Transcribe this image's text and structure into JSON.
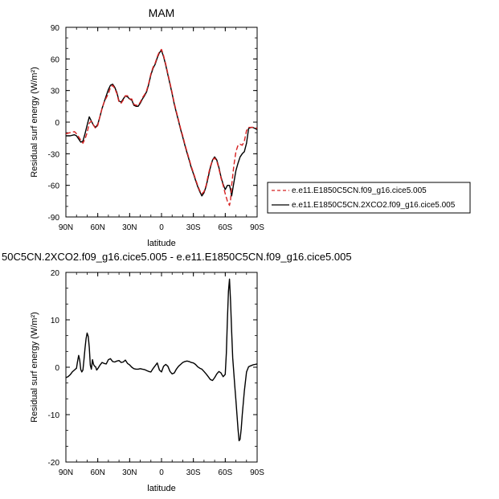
{
  "chart_data": [
    {
      "type": "line",
      "title": "MAM",
      "xlabel": "latitude",
      "ylabel": "Residual surf energy (W/m²)",
      "ylim": [
        -90,
        90
      ],
      "yticks": [
        "90",
        "60",
        "30",
        "0",
        "-30",
        "-60",
        "-90"
      ],
      "xlim": [
        90,
        -90
      ],
      "xticks": [
        "90N",
        "60N",
        "30N",
        "0",
        "30S",
        "60S",
        "90S"
      ],
      "grid": false,
      "legend_position": "outside-right",
      "legend": [
        "e.e11.E1850C5CN.f09_g16.cice5.005",
        "e.e11.E1850C5CN.2XCO2.f09_g16.cice5.005"
      ],
      "colors": {
        "red_dashed": "#d62020",
        "black_solid": "#000000"
      },
      "series": [
        {
          "name": "e.e11.E1850C5CN.f09_g16.cice5.005",
          "color": "#d62020",
          "dash": "dashed",
          "x": [
            90,
            86,
            82,
            80,
            78,
            76,
            74,
            72,
            70,
            68,
            66,
            64,
            62,
            60,
            58,
            56,
            54,
            52,
            50,
            48,
            46,
            44,
            42,
            40,
            38,
            36,
            34,
            32,
            30,
            28,
            26,
            24,
            22,
            20,
            18,
            16,
            14,
            12,
            10,
            8,
            6,
            4,
            2,
            0,
            -2,
            -4,
            -6,
            -8,
            -10,
            -12,
            -14,
            -16,
            -18,
            -20,
            -22,
            -24,
            -26,
            -28,
            -30,
            -32,
            -34,
            -36,
            -38,
            -40,
            -42,
            -44,
            -46,
            -48,
            -50,
            -52,
            -54,
            -56,
            -58,
            -60,
            -62,
            -64,
            -65,
            -66,
            -68,
            -70,
            -72,
            -74,
            -76,
            -78,
            -80,
            -82,
            -84,
            -86,
            -88,
            -90
          ],
          "y": [
            -11,
            -10,
            -9,
            -11,
            -14,
            -17,
            -20,
            -16,
            -10,
            -1,
            1,
            -3,
            -6,
            -3,
            5,
            13,
            19,
            23,
            27,
            33,
            35,
            32,
            27,
            19,
            18,
            21,
            25,
            25,
            22,
            22,
            17,
            16,
            16,
            19,
            23,
            26,
            30,
            37,
            46,
            52,
            56,
            62,
            67,
            69,
            63,
            55,
            46,
            37,
            28,
            18,
            10,
            2,
            -6,
            -13,
            -21,
            -28,
            -35,
            -42,
            -48,
            -54,
            -60,
            -65,
            -68,
            -66,
            -60,
            -50,
            -42,
            -36,
            -34,
            -37,
            -44,
            -53,
            -60,
            -68,
            -75,
            -79,
            -74,
            -60,
            -42,
            -28,
            -22,
            -21,
            -22,
            -18,
            -8,
            -5,
            -5,
            -5,
            -5,
            -6
          ]
        },
        {
          "name": "e.e11.E1850C5CN.2XCO2.f09_g16.cice5.005",
          "color": "#000000",
          "dash": "solid",
          "x": [
            90,
            86,
            82,
            80,
            78,
            76,
            74,
            72,
            70,
            68,
            66,
            64,
            62,
            60,
            58,
            56,
            54,
            52,
            50,
            48,
            46,
            44,
            42,
            40,
            38,
            36,
            34,
            32,
            30,
            28,
            26,
            24,
            22,
            20,
            18,
            16,
            14,
            12,
            10,
            8,
            6,
            4,
            2,
            0,
            -2,
            -4,
            -6,
            -8,
            -10,
            -12,
            -14,
            -16,
            -18,
            -20,
            -22,
            -24,
            -26,
            -28,
            -30,
            -32,
            -34,
            -36,
            -38,
            -40,
            -42,
            -44,
            -46,
            -48,
            -50,
            -52,
            -54,
            -56,
            -58,
            -60,
            -62,
            -64,
            -65,
            -66,
            -68,
            -70,
            -72,
            -74,
            -76,
            -78,
            -80,
            -82,
            -84,
            -86,
            -88,
            -90
          ],
          "y": [
            -13,
            -13,
            -12,
            -13,
            -16,
            -19,
            -18,
            -11,
            -3,
            5,
            1,
            -3,
            -5,
            -2,
            5,
            13,
            19,
            25,
            31,
            35,
            36,
            33,
            28,
            20,
            19,
            22,
            25,
            24,
            22,
            21,
            16,
            15,
            15,
            18,
            22,
            25,
            29,
            36,
            45,
            51,
            55,
            61,
            66,
            68,
            62,
            54,
            45,
            36,
            27,
            17,
            9,
            1,
            -7,
            -14,
            -22,
            -29,
            -36,
            -43,
            -49,
            -55,
            -61,
            -66,
            -70,
            -67,
            -61,
            -52,
            -43,
            -36,
            -33,
            -36,
            -43,
            -52,
            -59,
            -64,
            -60,
            -60,
            -64,
            -70,
            -58,
            -46,
            -39,
            -33,
            -30,
            -28,
            -20,
            -6,
            -5,
            -5,
            -6,
            -7
          ]
        }
      ]
    },
    {
      "type": "line",
      "title": "50C5CN.2XCO2.f09_g16.cice5.005 - e.e11.E1850C5CN.f09_g16.cice5.005",
      "xlabel": "latitude",
      "ylabel": "Residual surf energy (W/m²)",
      "ylim": [
        -20,
        20
      ],
      "yticks": [
        "20",
        "10",
        "0",
        "-10",
        "-20"
      ],
      "xlim": [
        90,
        -90
      ],
      "xticks": [
        "90N",
        "60N",
        "30N",
        "0",
        "30S",
        "60S",
        "90S"
      ],
      "grid": false,
      "colors": {
        "line": "#000000"
      },
      "series": [
        {
          "color": "#000000",
          "dash": "solid",
          "x": [
            90,
            88,
            86,
            84,
            82,
            80,
            79,
            78,
            77,
            76,
            75,
            74,
            73,
            72,
            71,
            70,
            69,
            68,
            67,
            66,
            65,
            64,
            63,
            62,
            61,
            60,
            58,
            56,
            54,
            52,
            50,
            48,
            46,
            44,
            42,
            40,
            38,
            36,
            34,
            32,
            30,
            28,
            26,
            24,
            22,
            20,
            18,
            16,
            14,
            12,
            10,
            8,
            6,
            4,
            2,
            0,
            -2,
            -4,
            -6,
            -8,
            -10,
            -12,
            -14,
            -16,
            -18,
            -20,
            -22,
            -24,
            -26,
            -28,
            -30,
            -32,
            -34,
            -36,
            -38,
            -40,
            -42,
            -44,
            -46,
            -48,
            -50,
            -52,
            -54,
            -56,
            -58,
            -60,
            -61,
            -62,
            -63,
            -64,
            -65,
            -66,
            -67,
            -68,
            -69,
            -70,
            -71,
            -72,
            -73,
            -74,
            -75,
            -76,
            -78,
            -80,
            -82,
            -84,
            -86,
            -88,
            -90
          ],
          "y": [
            -2.2,
            -2.0,
            -1.6,
            -1.0,
            -0.6,
            -0.2,
            1.2,
            2.5,
            1.5,
            -0.5,
            -1.0,
            -0.6,
            1.6,
            4.0,
            6.0,
            7.2,
            6.5,
            4.2,
            0.4,
            -0.4,
            1.6,
            0.6,
            0.2,
            0.1,
            -0.6,
            -0.3,
            0.4,
            1.0,
            0.8,
            0.7,
            1.6,
            1.8,
            1.2,
            1.1,
            1.3,
            1.4,
            1.0,
            1.1,
            1.5,
            0.8,
            0.5,
            0.0,
            -0.3,
            -0.4,
            -0.4,
            -0.3,
            -0.4,
            -0.5,
            -0.7,
            -0.9,
            -1.0,
            -0.3,
            0.3,
            0.9,
            -0.6,
            -1.0,
            0.2,
            0.6,
            0.2,
            -0.9,
            -1.4,
            -1.2,
            -0.4,
            0.2,
            0.6,
            1.0,
            1.2,
            1.3,
            1.2,
            1.0,
            0.9,
            0.6,
            0.1,
            -0.2,
            -0.4,
            -0.9,
            -1.4,
            -2.0,
            -2.6,
            -2.8,
            -2.2,
            -1.4,
            -0.9,
            -1.2,
            -2.0,
            -1.5,
            3.0,
            10.0,
            16.0,
            18.6,
            14.0,
            7.5,
            2.0,
            -1.0,
            -4.0,
            -7.0,
            -10.0,
            -13.0,
            -15.5,
            -15.2,
            -13.0,
            -10.0,
            -5.0,
            -1.0,
            0.1,
            0.3,
            0.5,
            0.6,
            0.7
          ]
        }
      ]
    }
  ],
  "legend": {
    "items": [
      "e.e11.E1850C5CN.f09_g16.cice5.005",
      "e.e11.E1850C5CN.2XCO2.f09_g16.cice5.005"
    ]
  }
}
